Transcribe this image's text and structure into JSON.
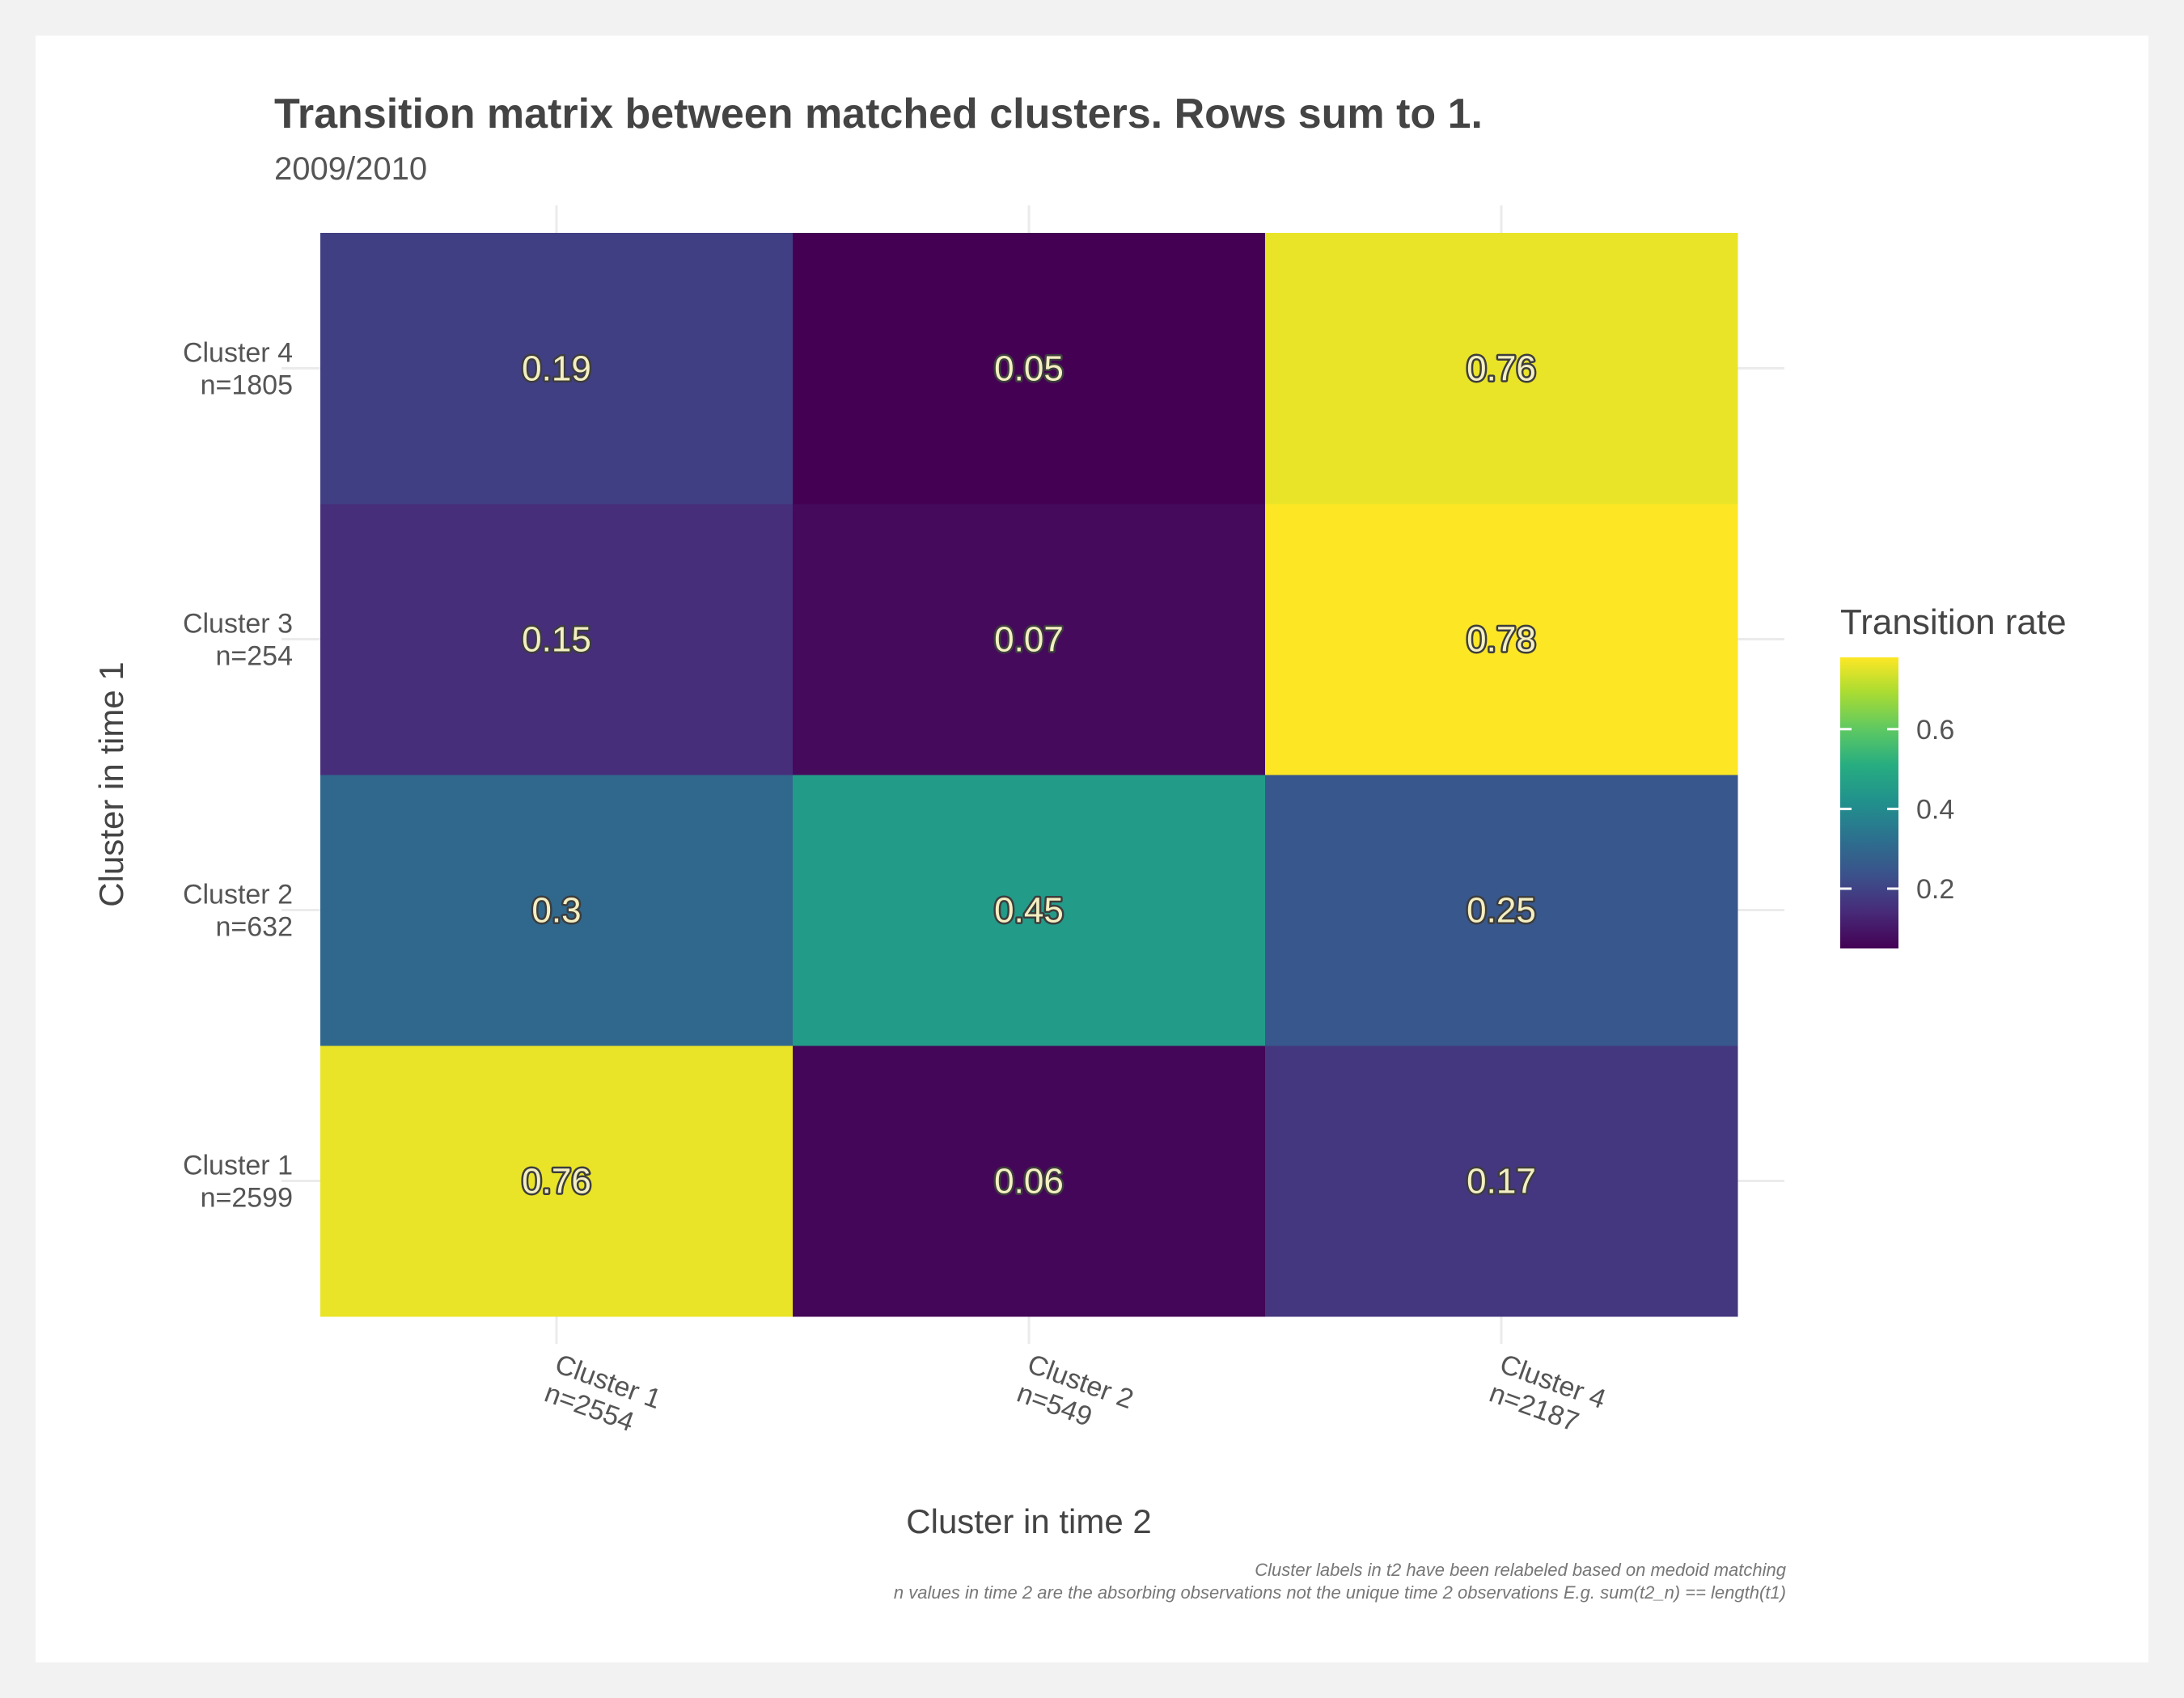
{
  "chart_data": {
    "type": "heatmap",
    "title": "Transition matrix between matched clusters. Rows sum to 1.",
    "subtitle": "2009/2010",
    "xlabel": "Cluster in time 2",
    "ylabel": "Cluster in time 1",
    "x_categories": [
      {
        "name": "Cluster 1",
        "n": "n=2554"
      },
      {
        "name": "Cluster 2",
        "n": "n=549"
      },
      {
        "name": "Cluster 4",
        "n": "n=2187"
      }
    ],
    "y_categories": [
      {
        "name": "Cluster 1",
        "n": "n=2599"
      },
      {
        "name": "Cluster 2",
        "n": "n=632"
      },
      {
        "name": "Cluster 3",
        "n": "n=254"
      },
      {
        "name": "Cluster 4",
        "n": "n=1805"
      }
    ],
    "values": [
      [
        0.76,
        0.06,
        0.17
      ],
      [
        0.3,
        0.45,
        0.25
      ],
      [
        0.15,
        0.07,
        0.78
      ],
      [
        0.19,
        0.05,
        0.76
      ]
    ],
    "value_labels": [
      [
        "0.76",
        "0.06",
        "0.17"
      ],
      [
        "0.3",
        "0.45",
        "0.25"
      ],
      [
        "0.15",
        "0.07",
        "0.78"
      ],
      [
        "0.19",
        "0.05",
        "0.76"
      ]
    ],
    "legend": {
      "title": "Transition rate",
      "position": "right",
      "range": [
        0.05,
        0.78
      ],
      "ticks": [
        {
          "value": 0.2,
          "label": "0.2"
        },
        {
          "value": 0.4,
          "label": "0.4"
        },
        {
          "value": 0.6,
          "label": "0.6"
        }
      ]
    },
    "colormap": "viridis",
    "grid": true,
    "caption": [
      "Cluster labels in t2 have been relabeled based on medoid matching",
      "n values in time 2 are the absorbing observations not the unique time 2 observations E.g. sum(t2_n) == length(t1)"
    ]
  }
}
